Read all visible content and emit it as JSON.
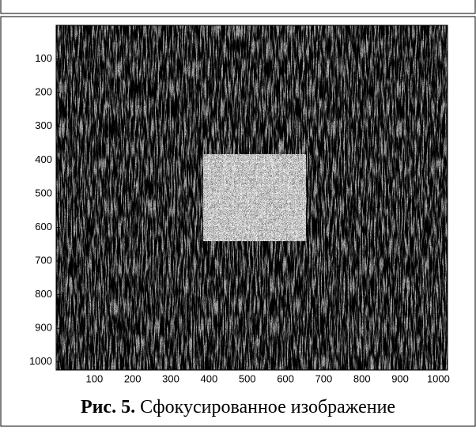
{
  "chart_data": {
    "type": "image",
    "xlim": [
      0,
      1024
    ],
    "ylim": [
      0,
      1024
    ],
    "y_reversed": true,
    "xticks": [
      100,
      200,
      300,
      400,
      500,
      600,
      700,
      800,
      900,
      1000
    ],
    "yticks": [
      100,
      200,
      300,
      400,
      500,
      600,
      700,
      800,
      900,
      1000
    ]
  },
  "caption": {
    "label": "Рис. 5.",
    "text": "Сфокусированное изображение"
  }
}
